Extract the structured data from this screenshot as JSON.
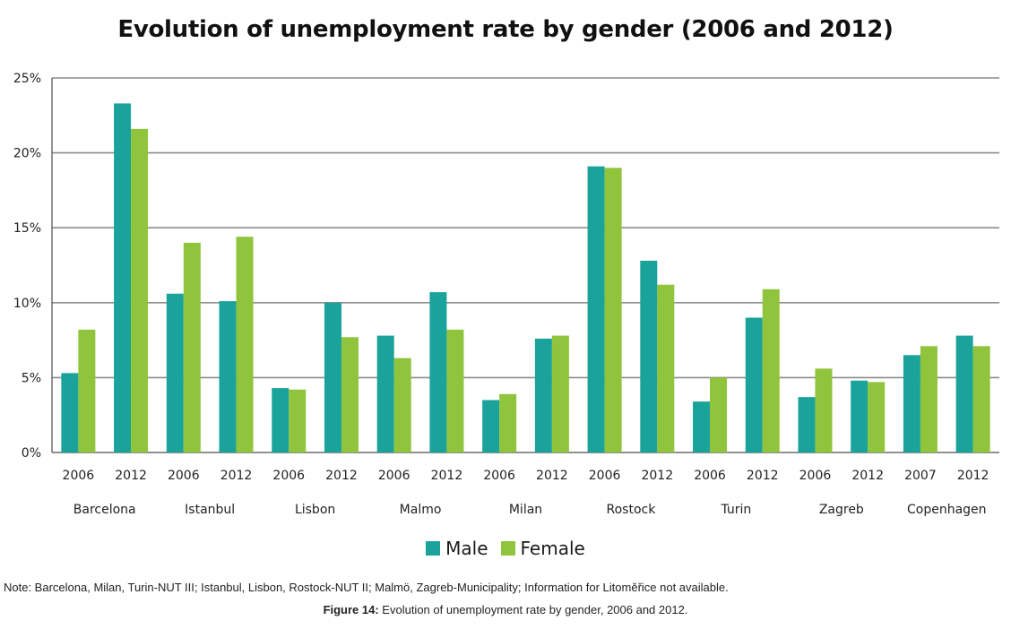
{
  "title": "Evolution of unemployment rate by gender (2006 and 2012)",
  "legend": {
    "male_label": "Male",
    "female_label": "Female"
  },
  "colors": {
    "male": "#1aa39a",
    "female": "#8fc43c",
    "grid": "#8c8c8c",
    "axis": "#4d4d4d"
  },
  "note": "Note: Barcelona, Milan, Turin-NUT III; Istanbul, Lisbon, Rostock-NUT II; Malmö, Zagreb-Municipality; Information for Litoměřice not available.",
  "caption": {
    "prefix": "Figure 14:",
    "text": " Evolution of unemployment rate by gender, 2006 and 2012."
  },
  "chart_data": {
    "type": "bar",
    "ylim": [
      0,
      25
    ],
    "yticks": [
      0,
      5,
      10,
      15,
      20,
      25
    ],
    "ytick_labels": [
      "0%",
      "5%",
      "10%",
      "15%",
      "20%",
      "25%"
    ],
    "grid": true,
    "legend_position": "bottom",
    "groups": [
      {
        "city": "Barcelona",
        "years": [
          "2006",
          "2012"
        ]
      },
      {
        "city": "Istanbul",
        "years": [
          "2006",
          "2012"
        ]
      },
      {
        "city": "Lisbon",
        "years": [
          "2006",
          "2012"
        ]
      },
      {
        "city": "Malmo",
        "years": [
          "2006",
          "2012"
        ]
      },
      {
        "city": "Milan",
        "years": [
          "2006",
          "2012"
        ]
      },
      {
        "city": "Rostock",
        "years": [
          "2006",
          "2012"
        ]
      },
      {
        "city": "Turin",
        "years": [
          "2006",
          "2012"
        ]
      },
      {
        "city": "Zagreb",
        "years": [
          "2006",
          "2012"
        ]
      },
      {
        "city": "Copenhagen",
        "years": [
          "2007",
          "2012"
        ]
      }
    ],
    "series": [
      {
        "name": "Male",
        "values": [
          5.3,
          23.3,
          10.6,
          10.1,
          4.3,
          10.0,
          7.8,
          10.7,
          3.5,
          7.6,
          19.1,
          12.8,
          3.4,
          9.0,
          3.7,
          4.8,
          6.5,
          7.8
        ]
      },
      {
        "name": "Female",
        "values": [
          8.2,
          21.6,
          14.0,
          14.4,
          4.2,
          7.7,
          6.3,
          8.2,
          3.9,
          7.8,
          19.0,
          11.2,
          5.0,
          10.9,
          5.6,
          4.7,
          7.1,
          7.1
        ]
      }
    ]
  }
}
